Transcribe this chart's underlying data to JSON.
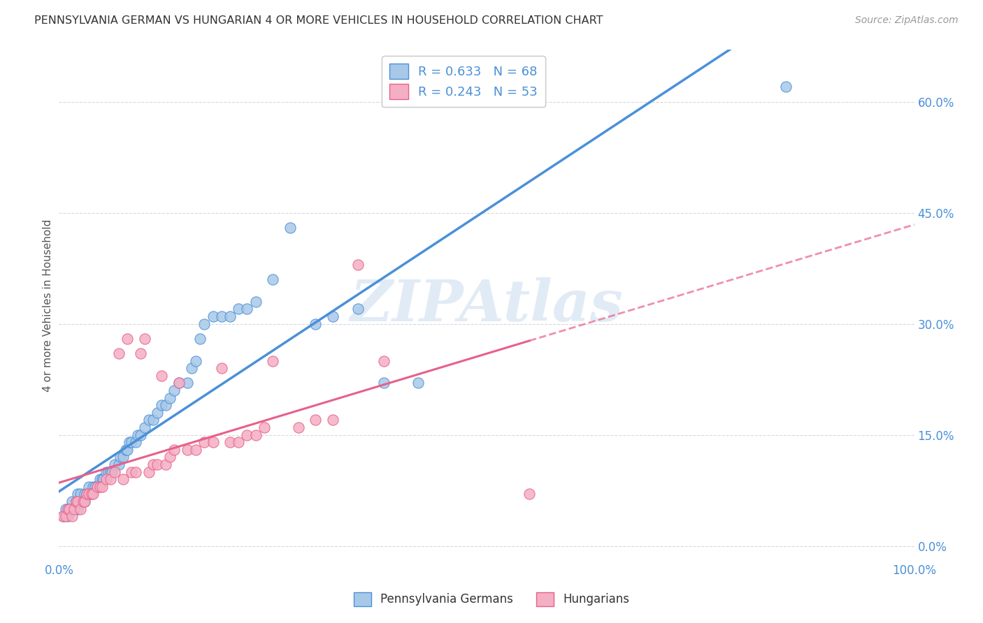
{
  "title": "PENNSYLVANIA GERMAN VS HUNGARIAN 4 OR MORE VEHICLES IN HOUSEHOLD CORRELATION CHART",
  "source": "Source: ZipAtlas.com",
  "ylabel": "4 or more Vehicles in Household",
  "r_german": 0.633,
  "n_german": 68,
  "r_hungarian": 0.243,
  "n_hungarian": 53,
  "xmin": 0.0,
  "xmax": 1.0,
  "ymin": -0.02,
  "ymax": 0.67,
  "ytick_positions": [
    0.0,
    0.15,
    0.3,
    0.45,
    0.6
  ],
  "ytick_labels": [
    "0.0%",
    "15.0%",
    "30.0%",
    "45.0%",
    "60.0%"
  ],
  "xtick_positions": [
    0.0,
    1.0
  ],
  "xtick_labels": [
    "0.0%",
    "100.0%"
  ],
  "color_german": "#a8c8e8",
  "color_hungarian": "#f4afc4",
  "color_trendline_german": "#4a90d9",
  "color_trendline_hungarian": "#e8608a",
  "legend_label_german": "Pennsylvania Germans",
  "legend_label_hungarian": "Hungarians",
  "background_color": "#ffffff",
  "grid_color": "#d8d8d8",
  "axis_label_color": "#4a90d9",
  "watermark": "ZIPAtlas",
  "german_x": [
    0.005,
    0.008,
    0.01,
    0.012,
    0.015,
    0.015,
    0.018,
    0.02,
    0.022,
    0.022,
    0.025,
    0.025,
    0.028,
    0.03,
    0.03,
    0.032,
    0.035,
    0.035,
    0.038,
    0.04,
    0.042,
    0.045,
    0.048,
    0.05,
    0.052,
    0.055,
    0.058,
    0.06,
    0.062,
    0.065,
    0.07,
    0.072,
    0.075,
    0.078,
    0.08,
    0.082,
    0.085,
    0.09,
    0.092,
    0.095,
    0.1,
    0.105,
    0.11,
    0.115,
    0.12,
    0.125,
    0.13,
    0.135,
    0.14,
    0.15,
    0.155,
    0.16,
    0.165,
    0.17,
    0.18,
    0.19,
    0.2,
    0.21,
    0.22,
    0.23,
    0.25,
    0.27,
    0.3,
    0.32,
    0.35,
    0.38,
    0.42,
    0.85
  ],
  "german_y": [
    0.04,
    0.05,
    0.04,
    0.05,
    0.05,
    0.06,
    0.05,
    0.06,
    0.05,
    0.07,
    0.06,
    0.07,
    0.06,
    0.06,
    0.07,
    0.07,
    0.07,
    0.08,
    0.07,
    0.08,
    0.08,
    0.08,
    0.09,
    0.09,
    0.09,
    0.1,
    0.1,
    0.1,
    0.1,
    0.11,
    0.11,
    0.12,
    0.12,
    0.13,
    0.13,
    0.14,
    0.14,
    0.14,
    0.15,
    0.15,
    0.16,
    0.17,
    0.17,
    0.18,
    0.19,
    0.19,
    0.2,
    0.21,
    0.22,
    0.22,
    0.24,
    0.25,
    0.28,
    0.3,
    0.31,
    0.31,
    0.31,
    0.32,
    0.32,
    0.33,
    0.36,
    0.43,
    0.3,
    0.31,
    0.32,
    0.22,
    0.22,
    0.62
  ],
  "hungarian_x": [
    0.005,
    0.008,
    0.01,
    0.012,
    0.015,
    0.018,
    0.02,
    0.022,
    0.025,
    0.028,
    0.03,
    0.032,
    0.035,
    0.038,
    0.04,
    0.045,
    0.048,
    0.05,
    0.055,
    0.06,
    0.065,
    0.07,
    0.075,
    0.08,
    0.085,
    0.09,
    0.095,
    0.1,
    0.105,
    0.11,
    0.115,
    0.12,
    0.125,
    0.13,
    0.135,
    0.14,
    0.15,
    0.16,
    0.17,
    0.18,
    0.19,
    0.2,
    0.21,
    0.22,
    0.23,
    0.24,
    0.25,
    0.28,
    0.3,
    0.32,
    0.35,
    0.38,
    0.55
  ],
  "hungarian_y": [
    0.04,
    0.04,
    0.05,
    0.05,
    0.04,
    0.05,
    0.06,
    0.06,
    0.05,
    0.06,
    0.06,
    0.07,
    0.07,
    0.07,
    0.07,
    0.08,
    0.08,
    0.08,
    0.09,
    0.09,
    0.1,
    0.26,
    0.09,
    0.28,
    0.1,
    0.1,
    0.26,
    0.28,
    0.1,
    0.11,
    0.11,
    0.23,
    0.11,
    0.12,
    0.13,
    0.22,
    0.13,
    0.13,
    0.14,
    0.14,
    0.24,
    0.14,
    0.14,
    0.15,
    0.15,
    0.16,
    0.25,
    0.16,
    0.17,
    0.17,
    0.38,
    0.25,
    0.07
  ]
}
